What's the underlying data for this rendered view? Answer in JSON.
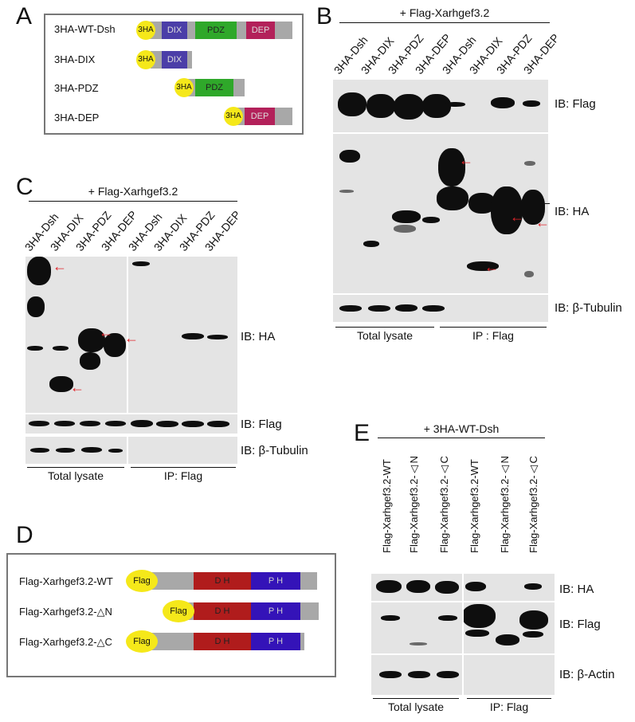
{
  "panels": {
    "A": {
      "letter": "A",
      "constructs": [
        {
          "name": "3HA-WT-Dsh",
          "tag": "3HA",
          "domains": [
            "DIX",
            "PDZ",
            "DEP"
          ]
        },
        {
          "name": "3HA-DIX",
          "tag": "3HA",
          "domains": [
            "DIX"
          ]
        },
        {
          "name": "3HA-PDZ",
          "tag": "3HA",
          "domains": [
            "PDZ"
          ]
        },
        {
          "name": "3HA-DEP",
          "tag": "3HA",
          "domains": [
            "DEP"
          ]
        }
      ]
    },
    "B": {
      "letter": "B",
      "header": "+ Flag-Xarhgef3.2",
      "lanes": [
        "3HA-Dsh",
        "3HA-DIX",
        "3HA-PDZ",
        "3HA-DEP",
        "3HA-Dsh",
        "3HA-DIX",
        "3HA-PDZ",
        "3HA-DEP"
      ],
      "blots": [
        "IB: Flag",
        "IB: HA",
        "IB: β-Tubulin"
      ],
      "groups": [
        "Total lysate",
        "IP :  Flag"
      ]
    },
    "C": {
      "letter": "C",
      "header": "+ Flag-Xarhgef3.2",
      "lanes": [
        "3HA-Dsh",
        "3HA-DIX",
        "3HA-PDZ",
        "3HA-DEP",
        "3HA-Dsh",
        "3HA-DIX",
        "3HA-PDZ",
        "3HA-DEP"
      ],
      "blots": [
        "IB: HA",
        "IB: Flag",
        "IB: β-Tubulin"
      ],
      "groups": [
        "Total lysate",
        "IP:  Flag"
      ]
    },
    "D": {
      "letter": "D",
      "constructs": [
        {
          "name": "Flag-Xarhgef3.2-WT",
          "tag": "Flag",
          "domains": [
            "D H",
            "P H"
          ]
        },
        {
          "name": "Flag-Xarhgef3.2-△N",
          "tag": "Flag",
          "domains": [
            "D H",
            "P H"
          ]
        },
        {
          "name": "Flag-Xarhgef3.2-△C",
          "tag": "Flag",
          "domains": [
            "D H",
            "P H"
          ]
        }
      ]
    },
    "E": {
      "letter": "E",
      "header": "+ 3HA-WT-Dsh",
      "lanes": [
        "Flag-Xarhgef3.2-WT",
        "Flag-Xarhgef3.2-△N",
        "Flag-Xarhgef3.2-△C",
        "Flag-Xarhgef3.2-WT",
        "Flag-Xarhgef3.2-△N",
        "Flag-Xarhgef3.2-△C"
      ],
      "blots": [
        "IB: HA",
        "IB: Flag",
        "IB: β-Actin"
      ],
      "groups": [
        "Total lysate",
        "IP:  Flag"
      ]
    }
  },
  "colors": {
    "tag_yellow": "#f5e81a",
    "dix": "#4b3ea8",
    "pdz": "#2fa82a",
    "dep": "#b3215a",
    "dh": "#b01c1c",
    "ph": "#3413b8",
    "linker": "#a8a8a8",
    "arrow": "#e0242a"
  }
}
